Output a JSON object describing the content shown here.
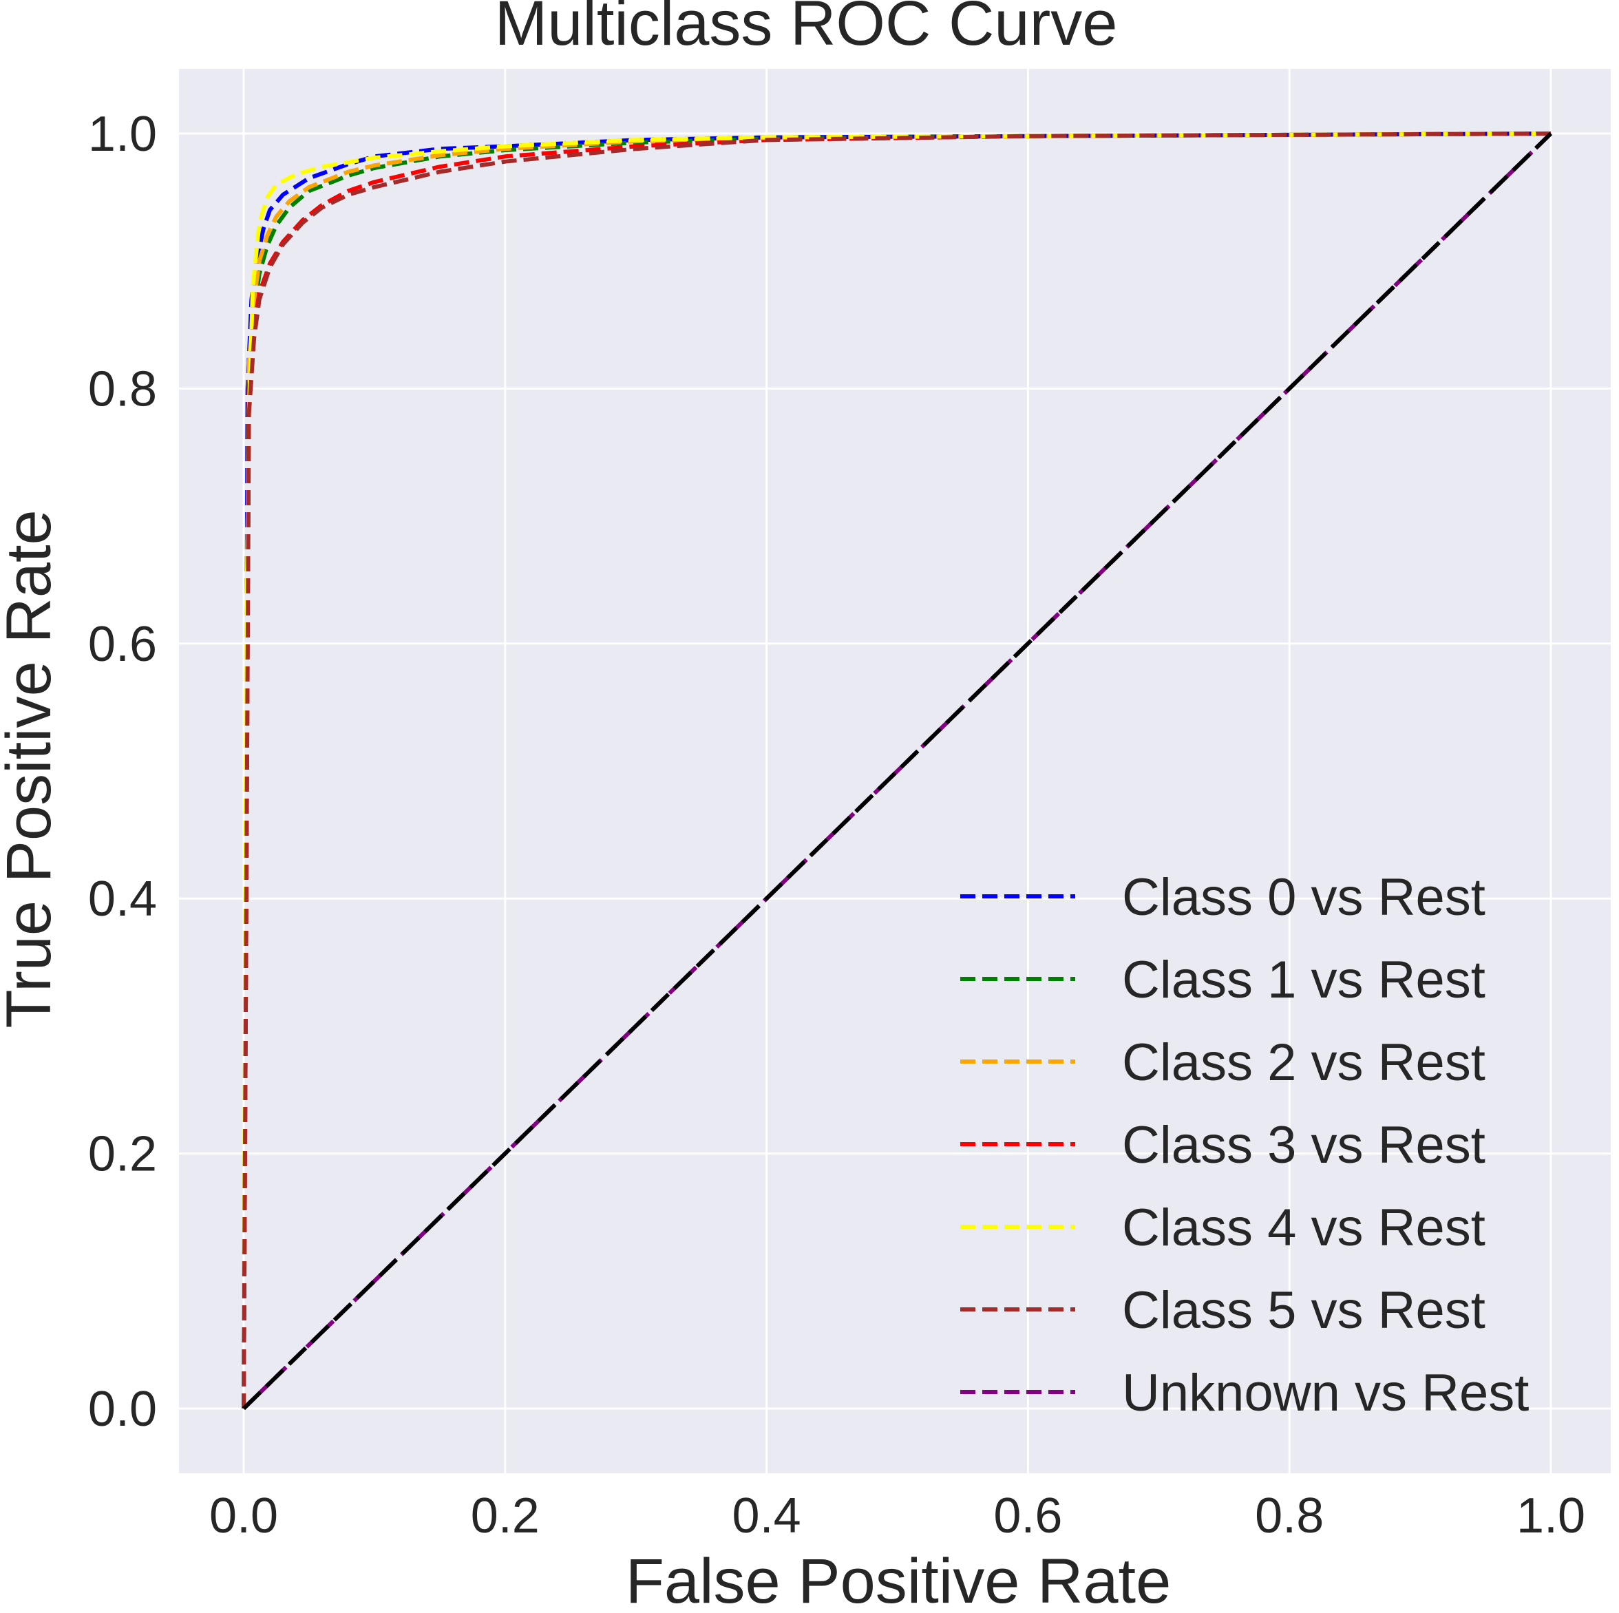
{
  "chart_data": {
    "type": "line",
    "title": "Multiclass ROC Curve",
    "xlabel": "False Positive Rate",
    "ylabel": "True Positive Rate",
    "xlim": [
      -0.05,
      1.05
    ],
    "ylim": [
      -0.05,
      1.05
    ],
    "xticks": [
      "0.0",
      "0.2",
      "0.4",
      "0.6",
      "0.8",
      "1.0"
    ],
    "yticks": [
      "0.0",
      "0.2",
      "0.4",
      "0.6",
      "0.8",
      "1.0"
    ],
    "tick_values": [
      0,
      0.2,
      0.4,
      0.6,
      0.8,
      1.0
    ],
    "grid": true,
    "background": "#eaeaf2",
    "legend_position": "lower-right",
    "series": [
      {
        "name": "Class 0 vs Rest",
        "color": "#0000ff",
        "style": "dashed",
        "x": [
          0,
          0.003,
          0.006,
          0.01,
          0.015,
          0.02,
          0.03,
          0.05,
          0.08,
          0.1,
          0.15,
          0.2,
          0.3,
          0.4,
          0.6,
          0.8,
          1.0
        ],
        "y": [
          0,
          0.8,
          0.87,
          0.9,
          0.925,
          0.94,
          0.952,
          0.965,
          0.976,
          0.982,
          0.988,
          0.99,
          0.995,
          0.997,
          0.998,
          0.999,
          1.0
        ]
      },
      {
        "name": "Class 1 vs Rest",
        "color": "#008000",
        "style": "dashed",
        "x": [
          0,
          0.004,
          0.008,
          0.012,
          0.018,
          0.025,
          0.035,
          0.05,
          0.08,
          0.1,
          0.15,
          0.2,
          0.3,
          0.4,
          0.6,
          0.8,
          1.0
        ],
        "y": [
          0,
          0.8,
          0.86,
          0.89,
          0.912,
          0.928,
          0.942,
          0.955,
          0.967,
          0.973,
          0.982,
          0.987,
          0.993,
          0.996,
          0.998,
          0.999,
          1.0
        ]
      },
      {
        "name": "Class 2 vs Rest",
        "color": "#ffa500",
        "style": "dashed",
        "x": [
          0,
          0.004,
          0.008,
          0.012,
          0.018,
          0.025,
          0.035,
          0.05,
          0.08,
          0.1,
          0.15,
          0.2,
          0.3,
          0.4,
          0.6,
          0.8,
          1.0
        ],
        "y": [
          0,
          0.82,
          0.87,
          0.9,
          0.92,
          0.935,
          0.947,
          0.958,
          0.97,
          0.975,
          0.983,
          0.988,
          0.994,
          0.997,
          0.998,
          0.999,
          1.0
        ]
      },
      {
        "name": "Class 3 vs Rest",
        "color": "#ff0000",
        "style": "dashed",
        "x": [
          0,
          0.004,
          0.008,
          0.012,
          0.02,
          0.03,
          0.045,
          0.06,
          0.08,
          0.1,
          0.15,
          0.2,
          0.3,
          0.4,
          0.6,
          0.8,
          1.0
        ],
        "y": [
          0,
          0.8,
          0.85,
          0.875,
          0.898,
          0.915,
          0.932,
          0.944,
          0.955,
          0.962,
          0.974,
          0.982,
          0.99,
          0.995,
          0.998,
          0.999,
          1.0
        ]
      },
      {
        "name": "Class 4 vs Rest",
        "color": "#ffff00",
        "style": "dashed",
        "x": [
          0,
          0.002,
          0.004,
          0.007,
          0.012,
          0.018,
          0.025,
          0.04,
          0.06,
          0.1,
          0.15,
          0.2,
          0.3,
          0.4,
          0.6,
          0.8,
          1.0
        ],
        "y": [
          0,
          0.6,
          0.78,
          0.88,
          0.93,
          0.95,
          0.96,
          0.968,
          0.974,
          0.981,
          0.986,
          0.99,
          0.995,
          0.997,
          0.998,
          0.999,
          1.0
        ]
      },
      {
        "name": "Class 5 vs Rest",
        "color": "#a52a2a",
        "style": "dashed",
        "x": [
          0,
          0.004,
          0.008,
          0.012,
          0.02,
          0.03,
          0.045,
          0.06,
          0.08,
          0.1,
          0.15,
          0.2,
          0.3,
          0.4,
          0.6,
          0.8,
          1.0
        ],
        "y": [
          0,
          0.78,
          0.84,
          0.87,
          0.895,
          0.913,
          0.93,
          0.942,
          0.952,
          0.958,
          0.97,
          0.978,
          0.988,
          0.995,
          0.998,
          0.999,
          1.0
        ]
      },
      {
        "name": "Unknown vs Rest",
        "color": "#800080",
        "style": "dashed",
        "x": [
          0,
          1.0
        ],
        "y": [
          0,
          1.0
        ]
      }
    ],
    "reference_line": {
      "color": "#000000",
      "style": "dashed",
      "x": [
        0,
        1
      ],
      "y": [
        0,
        1
      ]
    }
  }
}
